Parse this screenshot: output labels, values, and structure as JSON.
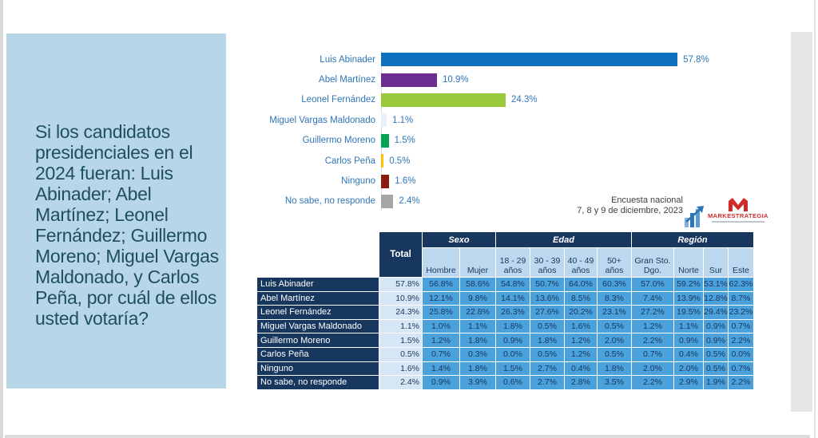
{
  "slide": {
    "question": "Si los candidatos presidenciales en el 2024 fueran: Luis Abinader; Abel Martínez; Leonel Fernández; Guillermo Moreno; Miguel Vargas Maldonado, y Carlos Peña, por cuál de ellos usted votaría?",
    "note_line1": "Encuesta nacional",
    "note_line2": "7, 8 y 9 de diciembre, 2023",
    "logo_text": "MARKESTRATEGIA"
  },
  "colors": {
    "question_box_bg": "#b7d7e9",
    "question_text": "#1f4e63",
    "chart_label_blue": "#2e75b6",
    "table_navy": "#17375e",
    "table_subheader_bg": "#bdd7ee",
    "table_total_bg": "#d6e6f5",
    "table_cell_bg": "#4ba1dc",
    "logo_red": "#cf2b2b",
    "logo_blue": "#2e75b6"
  },
  "chart_data": [
    {
      "type": "bar",
      "orientation": "horizontal",
      "title": "",
      "xlabel": "",
      "ylabel": "",
      "xlim": [
        0,
        62
      ],
      "grid": false,
      "legend": false,
      "categories": [
        "Luis Abinader",
        "Abel Martínez",
        "Leonel Fernández",
        "Miguel Vargas Maldonado",
        "Guillermo Moreno",
        "Carlos Peña",
        "Ninguno",
        "No sabe, no responde"
      ],
      "values": [
        57.8,
        10.9,
        24.3,
        1.1,
        1.5,
        0.5,
        1.6,
        2.4
      ],
      "value_labels": [
        "57.8%",
        "10.9%",
        "24.3%",
        "1.1%",
        "1.5%",
        "0.5%",
        "1.6%",
        "2.4%"
      ],
      "bar_colors": [
        "#0f71be",
        "#6b2d90",
        "#9aca3c",
        "#e9f0f7",
        "#00a651",
        "#ffc000",
        "#8b1a10",
        "#a6a6a6"
      ]
    },
    {
      "type": "table",
      "col_groups": [
        {
          "label": "Sexo",
          "span": 2
        },
        {
          "label": "Edad",
          "span": 4
        },
        {
          "label": "Región",
          "span": 4
        }
      ],
      "total_label": "Total",
      "sub_headers": [
        "Hombre",
        "Mujer",
        "18 - 29 años",
        "30 - 39 años",
        "40 - 49 años",
        "50+ años",
        "Gran Sto. Dgo.",
        "Norte",
        "Sur",
        "Este"
      ],
      "rows": [
        {
          "label": "Luis Abinader",
          "total": "57.8%",
          "values": [
            "56.8%",
            "58.6%",
            "54.8%",
            "50.7%",
            "64.0%",
            "60.3%",
            "57.0%",
            "59.2%",
            "53.1%",
            "62.3%"
          ]
        },
        {
          "label": "Abel Martínez",
          "total": "10.9%",
          "values": [
            "12.1%",
            "9.8%",
            "14.1%",
            "13.6%",
            "8.5%",
            "8.3%",
            "7.4%",
            "13.9%",
            "12.8%",
            "8.7%"
          ]
        },
        {
          "label": "Leonel Fernández",
          "total": "24.3%",
          "values": [
            "25.8%",
            "22.8%",
            "26.3%",
            "27.6%",
            "20.2%",
            "23.1%",
            "27.2%",
            "19.5%",
            "29.4%",
            "23.2%"
          ]
        },
        {
          "label": "Miguel Vargas Maldonado",
          "total": "1.1%",
          "values": [
            "1.0%",
            "1.1%",
            "1.8%",
            "0.5%",
            "1.6%",
            "0.5%",
            "1.2%",
            "1.1%",
            "0.9%",
            "0.7%"
          ]
        },
        {
          "label": "Guillermo Moreno",
          "total": "1.5%",
          "values": [
            "1.2%",
            "1.8%",
            "0.9%",
            "1.8%",
            "1.2%",
            "2.0%",
            "2.2%",
            "0.9%",
            "0.9%",
            "2.2%"
          ]
        },
        {
          "label": "Carlos Peña",
          "total": "0.5%",
          "values": [
            "0.7%",
            "0.3%",
            "0.0%",
            "0.5%",
            "1.2%",
            "0.5%",
            "0.7%",
            "0.4%",
            "0.5%",
            "0.0%"
          ]
        },
        {
          "label": "Ninguno",
          "total": "1.6%",
          "values": [
            "1.4%",
            "1.8%",
            "1.5%",
            "2.7%",
            "0.4%",
            "1.8%",
            "2.0%",
            "2.0%",
            "0.5%",
            "0.7%"
          ]
        },
        {
          "label": "No sabe, no responde",
          "total": "2.4%",
          "values": [
            "0.9%",
            "3.9%",
            "0.6%",
            "2.7%",
            "2.8%",
            "3.5%",
            "2.2%",
            "2.9%",
            "1.9%",
            "2.2%"
          ]
        }
      ]
    }
  ]
}
